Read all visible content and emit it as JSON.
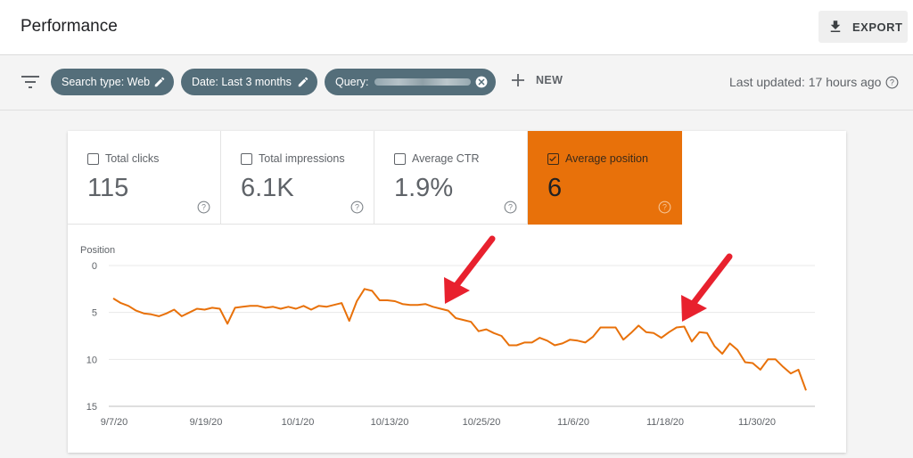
{
  "header": {
    "title": "Performance",
    "export_label": "EXPORT"
  },
  "filters": {
    "chips": [
      {
        "label": "Search type: Web"
      },
      {
        "label": "Date: Last 3 months"
      },
      {
        "label": "Query:"
      }
    ],
    "new_label": "NEW",
    "last_updated": "Last updated: 17 hours ago"
  },
  "metrics": [
    {
      "label": "Total clicks",
      "value": "115",
      "checked": false
    },
    {
      "label": "Total impressions",
      "value": "6.1K",
      "checked": false
    },
    {
      "label": "Average CTR",
      "value": "1.9%",
      "checked": false
    },
    {
      "label": "Average position",
      "value": "6",
      "checked": true
    }
  ],
  "colors": {
    "accent": "#e8710a",
    "chip": "#546e7a",
    "annotation": "#e8212e"
  },
  "chart_data": {
    "type": "line",
    "ylabel": "Position",
    "y_inverted": true,
    "ylim": [
      0,
      15
    ],
    "yticks": [
      "0",
      "5",
      "10",
      "15"
    ],
    "xticks": [
      "9/7/20",
      "9/19/20",
      "10/1/20",
      "10/13/20",
      "10/25/20",
      "11/6/20",
      "11/18/20",
      "11/30/20"
    ],
    "series": [
      {
        "color": "#e8710a",
        "values": [
          3.5,
          4.0,
          4.3,
          4.8,
          5.1,
          5.2,
          5.4,
          5.1,
          4.7,
          5.4,
          5.0,
          4.6,
          4.7,
          4.5,
          4.6,
          6.2,
          4.5,
          4.4,
          4.3,
          4.3,
          4.5,
          4.4,
          4.6,
          4.4,
          4.6,
          4.3,
          4.7,
          4.3,
          4.4,
          4.2,
          4.0,
          5.9,
          3.8,
          2.5,
          2.7,
          3.7,
          3.7,
          3.8,
          4.1,
          4.2,
          4.2,
          4.1,
          4.4,
          4.6,
          4.8,
          5.6,
          5.8,
          6.0,
          7.0,
          6.8,
          7.2,
          7.5,
          8.5,
          8.5,
          8.2,
          8.2,
          7.7,
          8.0,
          8.5,
          8.3,
          7.9,
          8.0,
          8.2,
          7.6,
          6.6,
          6.6,
          6.6,
          7.9,
          7.2,
          6.4,
          7.1,
          7.2,
          7.7,
          7.1,
          6.6,
          6.5,
          8.1,
          7.1,
          7.2,
          8.6,
          9.4,
          8.3,
          9.0,
          10.3,
          10.4,
          11.1,
          10.0,
          10.0,
          10.8,
          11.5,
          11.1,
          13.3
        ]
      }
    ],
    "annotations": [
      "arrow pointing to drop near 10/21/20",
      "arrow pointing to drop near 11/20/20"
    ]
  }
}
